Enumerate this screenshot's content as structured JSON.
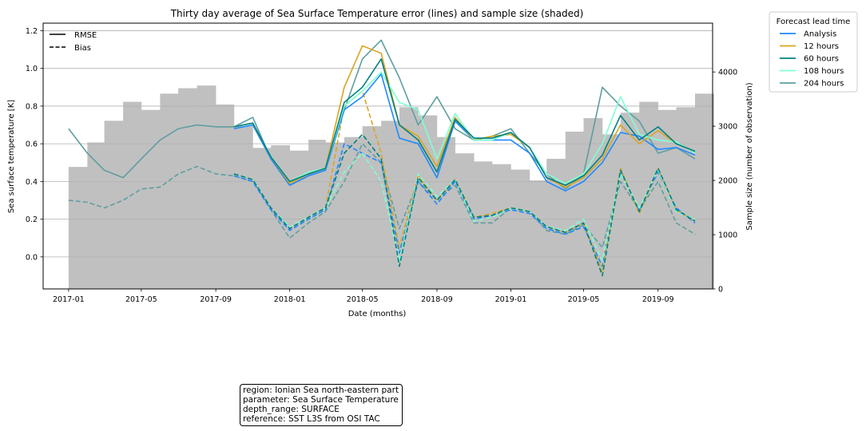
{
  "chart_data": {
    "type": "line",
    "title": "Thirty day average of Sea Surface Temperature error (lines) and sample size (shaded)",
    "xlabel": "Date (months)",
    "ylabel": "Sea surface temperature [K]",
    "y2label": "Sample size (number of observation)",
    "xlim": [
      "2016-11-20",
      "2019-11-30"
    ],
    "ylim": [
      -0.17,
      1.24
    ],
    "y2lim": [
      0,
      4900
    ],
    "xticks": [
      "2017-01",
      "2017-05",
      "2017-09",
      "2018-01",
      "2018-05",
      "2018-09",
      "2019-01",
      "2019-05",
      "2019-09"
    ],
    "yticks": [
      "0.0",
      "0.2",
      "0.4",
      "0.6",
      "0.8",
      "1.0",
      "1.2"
    ],
    "y2ticks": [
      "0",
      "1000",
      "2000",
      "3000",
      "4000"
    ],
    "grid": "horizontal",
    "style_legend": {
      "placement": "top-left",
      "entries": [
        {
          "label": "RMSE",
          "dash": "solid"
        },
        {
          "label": "Bias",
          "dash": "dashed"
        }
      ]
    },
    "legend": {
      "title": "Forecast lead time",
      "placement": "outside-right",
      "entries": [
        "Analysis",
        "12 hours",
        "60 hours",
        "108 hours",
        "204 hours"
      ]
    },
    "series_colors": {
      "Analysis": "#1e88ff",
      "12 hours": "#daa520",
      "60 hours": "#008080",
      "108 hours": "#7fffd4",
      "204 hours": "#5f9ea0"
    },
    "sample_size": {
      "color": "#c0c0c0",
      "x": [
        "2017-01-01",
        "2017-02-01",
        "2017-03-01",
        "2017-04-01",
        "2017-05-01",
        "2017-06-01",
        "2017-07-01",
        "2017-08-01",
        "2017-09-01",
        "2017-10-01",
        "2017-11-01",
        "2017-12-01",
        "2018-01-01",
        "2018-02-01",
        "2018-03-01",
        "2018-04-01",
        "2018-05-01",
        "2018-06-01",
        "2018-07-01",
        "2018-08-01",
        "2018-09-01",
        "2018-10-01",
        "2018-11-01",
        "2018-12-01",
        "2019-01-01",
        "2019-02-01",
        "2019-03-01",
        "2019-04-01",
        "2019-05-01",
        "2019-06-01",
        "2019-07-01",
        "2019-08-01",
        "2019-09-01",
        "2019-10-01",
        "2019-11-01"
      ],
      "values": [
        2250,
        2700,
        3100,
        3450,
        3300,
        3600,
        3700,
        3750,
        3400,
        3000,
        2600,
        2650,
        2550,
        2750,
        2700,
        2800,
        3000,
        3100,
        3350,
        3200,
        2800,
        2500,
        2350,
        2300,
        2200,
        2000,
        2400,
        2900,
        3150,
        2850,
        3250,
        3450,
        3300,
        3350,
        3600
      ]
    },
    "series": [
      {
        "name": "Analysis",
        "rmse": {
          "x": [
            "2017-10-01",
            "2017-11-01",
            "2017-12-01",
            "2018-01-01",
            "2018-02-01",
            "2018-03-01",
            "2018-04-01",
            "2018-05-01",
            "2018-06-01",
            "2018-07-01",
            "2018-08-01",
            "2018-09-01",
            "2018-10-01",
            "2018-11-01",
            "2018-12-01",
            "2019-01-01",
            "2019-02-01",
            "2019-03-01",
            "2019-04-01",
            "2019-05-01",
            "2019-06-01",
            "2019-07-01",
            "2019-08-01",
            "2019-09-01",
            "2019-10-01",
            "2019-11-01"
          ],
          "y": [
            0.68,
            0.7,
            0.52,
            0.38,
            0.43,
            0.46,
            0.78,
            0.85,
            0.97,
            0.63,
            0.6,
            0.42,
            0.72,
            0.62,
            0.62,
            0.62,
            0.55,
            0.4,
            0.35,
            0.4,
            0.5,
            0.66,
            0.64,
            0.57,
            0.58,
            0.54
          ]
        },
        "bias": {
          "x": [
            "2017-10-01",
            "2017-11-01",
            "2017-12-01",
            "2018-01-01",
            "2018-02-01",
            "2018-03-01",
            "2018-04-01",
            "2018-05-01",
            "2018-06-01",
            "2018-07-01",
            "2018-08-01",
            "2018-09-01",
            "2018-10-01",
            "2018-11-01",
            "2018-12-01",
            "2019-01-01",
            "2019-02-01",
            "2019-03-01",
            "2019-04-01",
            "2019-05-01",
            "2019-06-01",
            "2019-07-01",
            "2019-08-01",
            "2019-09-01",
            "2019-10-01",
            "2019-11-01"
          ],
          "y": [
            0.43,
            0.4,
            0.25,
            0.14,
            0.2,
            0.25,
            0.6,
            0.55,
            0.5,
            0.02,
            0.4,
            0.28,
            0.4,
            0.2,
            0.22,
            0.25,
            0.23,
            0.15,
            0.12,
            0.16,
            -0.05,
            0.45,
            0.25,
            0.45,
            0.26,
            0.18
          ]
        }
      },
      {
        "name": "12 hours",
        "rmse": {
          "x": [
            "2017-10-01",
            "2017-11-01",
            "2017-12-01",
            "2018-01-01",
            "2018-02-01",
            "2018-03-01",
            "2018-04-01",
            "2018-05-01",
            "2018-06-01",
            "2018-07-01",
            "2018-08-01",
            "2018-09-01",
            "2018-10-01",
            "2018-11-01",
            "2018-12-01",
            "2019-01-01",
            "2019-02-01",
            "2019-03-01",
            "2019-04-01",
            "2019-05-01",
            "2019-06-01",
            "2019-07-01",
            "2019-08-01",
            "2019-09-01",
            "2019-10-01",
            "2019-11-01"
          ],
          "y": [
            0.69,
            0.71,
            0.53,
            0.39,
            0.44,
            0.47,
            0.9,
            1.12,
            1.08,
            0.7,
            0.64,
            0.48,
            0.74,
            0.62,
            0.64,
            0.65,
            0.58,
            0.42,
            0.37,
            0.42,
            0.52,
            0.7,
            0.6,
            0.67,
            0.6,
            0.56
          ]
        },
        "bias": {
          "x": [
            "2017-10-01",
            "2017-11-01",
            "2017-12-01",
            "2018-01-01",
            "2018-02-01",
            "2018-03-01",
            "2018-04-01",
            "2018-05-01",
            "2018-06-01",
            "2018-07-01",
            "2018-08-01",
            "2018-09-01",
            "2018-10-01",
            "2018-11-01",
            "2018-12-01",
            "2019-01-01",
            "2019-02-01",
            "2019-03-01",
            "2019-04-01",
            "2019-05-01",
            "2019-06-01",
            "2019-07-01",
            "2019-08-01",
            "2019-09-01",
            "2019-10-01",
            "2019-11-01"
          ],
          "y": [
            0.44,
            0.41,
            0.26,
            0.15,
            0.21,
            0.26,
            0.8,
            0.88,
            0.55,
            0.05,
            0.43,
            0.3,
            0.41,
            0.21,
            0.23,
            0.26,
            0.24,
            0.16,
            0.13,
            0.18,
            -0.08,
            0.47,
            0.23,
            0.47,
            0.25,
            0.19
          ]
        }
      },
      {
        "name": "60 hours",
        "rmse": {
          "x": [
            "2017-10-01",
            "2017-11-01",
            "2017-12-01",
            "2018-01-01",
            "2018-02-01",
            "2018-03-01",
            "2018-04-01",
            "2018-05-01",
            "2018-06-01",
            "2018-07-01",
            "2018-08-01",
            "2018-09-01",
            "2018-10-01",
            "2018-11-01",
            "2018-12-01",
            "2019-01-01",
            "2019-02-01",
            "2019-03-01",
            "2019-04-01",
            "2019-05-01",
            "2019-06-01",
            "2019-07-01",
            "2019-08-01",
            "2019-09-01",
            "2019-10-01",
            "2019-11-01"
          ],
          "y": [
            0.69,
            0.71,
            0.53,
            0.4,
            0.44,
            0.47,
            0.82,
            0.9,
            1.05,
            0.7,
            0.62,
            0.45,
            0.73,
            0.63,
            0.63,
            0.66,
            0.58,
            0.42,
            0.38,
            0.43,
            0.54,
            0.75,
            0.62,
            0.69,
            0.6,
            0.56
          ]
        },
        "bias": {
          "x": [
            "2017-10-01",
            "2017-11-01",
            "2017-12-01",
            "2018-01-01",
            "2018-02-01",
            "2018-03-01",
            "2018-04-01",
            "2018-05-01",
            "2018-06-01",
            "2018-07-01",
            "2018-08-01",
            "2018-09-01",
            "2018-10-01",
            "2018-11-01",
            "2018-12-01",
            "2019-01-01",
            "2019-02-01",
            "2019-03-01",
            "2019-04-01",
            "2019-05-01",
            "2019-06-01",
            "2019-07-01",
            "2019-08-01",
            "2019-09-01",
            "2019-10-01",
            "2019-11-01"
          ],
          "y": [
            0.44,
            0.41,
            0.26,
            0.15,
            0.21,
            0.26,
            0.55,
            0.65,
            0.52,
            -0.05,
            0.42,
            0.3,
            0.41,
            0.21,
            0.22,
            0.26,
            0.24,
            0.16,
            0.13,
            0.18,
            -0.1,
            0.46,
            0.24,
            0.47,
            0.25,
            0.19
          ]
        }
      },
      {
        "name": "108 hours",
        "rmse": {
          "x": [
            "2017-10-01",
            "2017-11-01",
            "2017-12-01",
            "2018-01-01",
            "2018-02-01",
            "2018-03-01",
            "2018-04-01",
            "2018-05-01",
            "2018-06-01",
            "2018-07-01",
            "2018-08-01",
            "2018-09-01",
            "2018-10-01",
            "2018-11-01",
            "2018-12-01",
            "2019-01-01",
            "2019-02-01",
            "2019-03-01",
            "2019-04-01",
            "2019-05-01",
            "2019-06-01",
            "2019-07-01",
            "2019-08-01",
            "2019-09-01",
            "2019-10-01",
            "2019-11-01"
          ],
          "y": [
            0.69,
            0.71,
            0.53,
            0.4,
            0.45,
            0.47,
            0.8,
            0.88,
            0.98,
            0.82,
            0.78,
            0.52,
            0.76,
            0.62,
            0.62,
            0.66,
            0.58,
            0.44,
            0.39,
            0.44,
            0.6,
            0.85,
            0.65,
            0.62,
            0.61,
            0.55
          ]
        },
        "bias": {
          "x": [
            "2017-10-01",
            "2017-11-01",
            "2017-12-01",
            "2018-01-01",
            "2018-02-01",
            "2018-03-01",
            "2018-04-01",
            "2018-05-01",
            "2018-06-01",
            "2018-07-01",
            "2018-08-01",
            "2018-09-01",
            "2018-10-01",
            "2018-11-01",
            "2018-12-01",
            "2019-01-01",
            "2019-02-01",
            "2019-03-01",
            "2019-04-01",
            "2019-05-01",
            "2019-06-01",
            "2019-07-01",
            "2019-08-01",
            "2019-09-01",
            "2019-10-01",
            "2019-11-01"
          ],
          "y": [
            0.44,
            0.41,
            0.26,
            0.16,
            0.21,
            0.26,
            0.45,
            0.55,
            0.4,
            -0.02,
            0.44,
            0.32,
            0.41,
            0.19,
            0.21,
            0.26,
            0.24,
            0.16,
            0.14,
            0.2,
            -0.02,
            0.44,
            0.26,
            0.46,
            0.24,
            0.2
          ]
        }
      },
      {
        "name": "204 hours",
        "rmse": {
          "x": [
            "2017-01-01",
            "2017-02-01",
            "2017-03-01",
            "2017-04-01",
            "2017-05-01",
            "2017-06-01",
            "2017-07-01",
            "2017-08-01",
            "2017-09-01",
            "2017-10-01",
            "2017-11-01",
            "2017-12-01",
            "2018-01-01",
            "2018-02-01",
            "2018-03-01",
            "2018-04-01",
            "2018-05-01",
            "2018-06-01",
            "2018-07-01",
            "2018-08-01",
            "2018-09-01",
            "2018-10-01",
            "2018-11-01",
            "2018-12-01",
            "2019-01-01",
            "2019-02-01",
            "2019-03-01",
            "2019-04-01",
            "2019-05-01",
            "2019-06-01",
            "2019-07-01",
            "2019-08-01",
            "2019-09-01",
            "2019-10-01",
            "2019-11-01"
          ],
          "y": [
            0.68,
            0.55,
            0.46,
            0.42,
            0.52,
            0.62,
            0.68,
            0.7,
            0.69,
            0.69,
            0.74,
            0.52,
            0.38,
            0.43,
            0.46,
            0.78,
            1.05,
            1.15,
            0.95,
            0.7,
            0.85,
            0.68,
            0.62,
            0.64,
            0.68,
            0.55,
            0.44,
            0.36,
            0.44,
            0.9,
            0.8,
            0.72,
            0.55,
            0.58,
            0.52
          ]
        },
        "bias": {
          "x": [
            "2017-01-01",
            "2017-02-01",
            "2017-03-01",
            "2017-04-01",
            "2017-05-01",
            "2017-06-01",
            "2017-07-01",
            "2017-08-01",
            "2017-09-01",
            "2017-10-01",
            "2017-11-01",
            "2017-12-01",
            "2018-01-01",
            "2018-02-01",
            "2018-03-01",
            "2018-04-01",
            "2018-05-01",
            "2018-06-01",
            "2018-07-01",
            "2018-08-01",
            "2018-09-01",
            "2018-10-01",
            "2018-11-01",
            "2018-12-01",
            "2019-01-01",
            "2019-02-01",
            "2019-03-01",
            "2019-04-01",
            "2019-05-01",
            "2019-06-01",
            "2019-07-01",
            "2019-08-01",
            "2019-09-01",
            "2019-10-01",
            "2019-11-01"
          ],
          "y": [
            0.3,
            0.29,
            0.26,
            0.3,
            0.36,
            0.37,
            0.44,
            0.48,
            0.44,
            0.43,
            0.4,
            0.25,
            0.1,
            0.18,
            0.24,
            0.4,
            0.6,
            0.5,
            0.15,
            0.4,
            0.3,
            0.38,
            0.18,
            0.18,
            0.26,
            0.24,
            0.14,
            0.12,
            0.17,
            0.05,
            0.4,
            0.25,
            0.4,
            0.18,
            0.12
          ]
        }
      }
    ]
  },
  "info_box": {
    "lines": [
      "region: Ionian Sea north-eastern part",
      "parameter: Sea Surface Temperature",
      "depth_range: SURFACE",
      "reference: SST L3S from OSI TAC"
    ]
  }
}
